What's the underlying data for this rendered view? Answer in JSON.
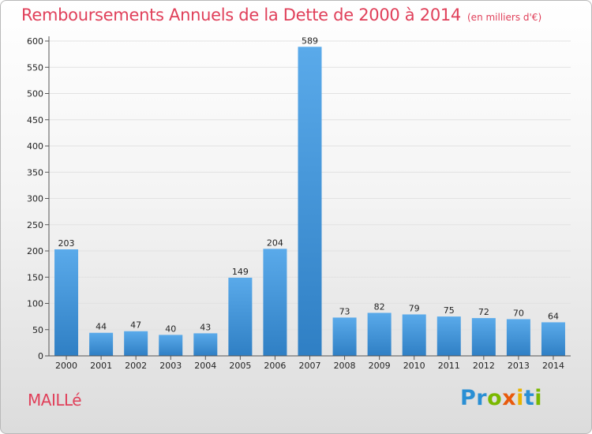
{
  "title": "Remboursements Annuels de la Dette de 2000 à 2014",
  "subtitle": "(en milliers d'€)",
  "commune": "MAILLé",
  "logo": {
    "text": "Proxiti",
    "letters": [
      {
        "ch": "P",
        "color": "#2a8fd4"
      },
      {
        "ch": "r",
        "color": "#2a8fd4"
      },
      {
        "ch": "o",
        "color": "#7ab800"
      },
      {
        "ch": "x",
        "color": "#e85a0c"
      },
      {
        "ch": "i",
        "color": "#e8b400"
      },
      {
        "ch": "t",
        "color": "#2a8fd4"
      },
      {
        "ch": "i",
        "color": "#7ab800"
      }
    ]
  },
  "colors": {
    "bar_light": "#5aaaea",
    "bar_dark": "#2f7fc4",
    "title": "#e0405a",
    "grid": "#e2e2e2",
    "axis": "#555555"
  },
  "chart_data": {
    "type": "bar",
    "categories": [
      "2000",
      "2001",
      "2002",
      "2003",
      "2004",
      "2005",
      "2006",
      "2007",
      "2008",
      "2009",
      "2010",
      "2011",
      "2012",
      "2013",
      "2014"
    ],
    "values": [
      203,
      44,
      47,
      40,
      43,
      149,
      204,
      589,
      73,
      82,
      79,
      75,
      72,
      70,
      64
    ],
    "ylim": [
      0,
      600
    ],
    "yticks": [
      0,
      50,
      100,
      150,
      200,
      250,
      300,
      350,
      400,
      450,
      500,
      550,
      600
    ],
    "grid": true,
    "data_labels": true
  }
}
